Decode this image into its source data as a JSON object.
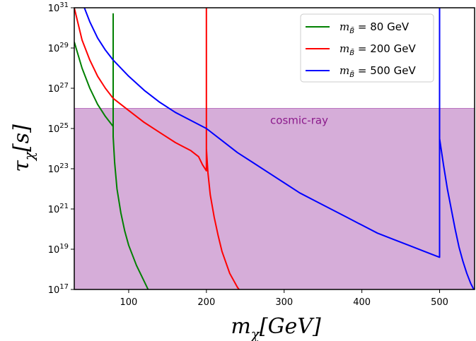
{
  "chart_data": {
    "type": "line",
    "title": "",
    "xlabel": "m_χ[GeV]",
    "ylabel": "τ_χ[s]",
    "xlim": [
      30,
      545
    ],
    "ylim_log10": [
      17,
      31
    ],
    "y_scale": "log",
    "grid": false,
    "legend_placement": "top-right",
    "x_ticks": [
      100,
      200,
      300,
      400,
      500
    ],
    "y_ticks": [
      {
        "value": "1e17",
        "mantissa": "10",
        "exponent": "17"
      },
      {
        "value": "1e19",
        "mantissa": "10",
        "exponent": "19"
      },
      {
        "value": "1e21",
        "mantissa": "10",
        "exponent": "21"
      },
      {
        "value": "1e23",
        "mantissa": "10",
        "exponent": "23"
      },
      {
        "value": "1e25",
        "mantissa": "10",
        "exponent": "25"
      },
      {
        "value": "1e27",
        "mantissa": "10",
        "exponent": "27"
      },
      {
        "value": "1e29",
        "mantissa": "10",
        "exponent": "29"
      },
      {
        "value": "1e31",
        "mantissa": "10",
        "exponent": "31"
      }
    ],
    "bands": [
      {
        "label": "cosmic-ray",
        "y_log10_min": 17,
        "y_log10_max": 26,
        "color": "#ae5cb4",
        "opacity": 0.5,
        "text_color": "#8b1a8b"
      }
    ],
    "series": [
      {
        "name": "m_B̃ = 80 GeV",
        "legend_prefix": "m",
        "legend_sub": "B̃",
        "legend_suffix": " = 80 GeV",
        "color": "#008000",
        "x": [
          30,
          40,
          50,
          60,
          70,
          80,
          80,
          80,
          82,
          85,
          90,
          95,
          100,
          110,
          120,
          125
        ],
        "y_log10": [
          29.3,
          28.0,
          27.0,
          26.2,
          25.6,
          25.1,
          30.7,
          24.6,
          23.3,
          22.0,
          20.8,
          19.9,
          19.2,
          18.2,
          17.4,
          17.0
        ]
      },
      {
        "name": "m_B̃ = 200 GeV",
        "legend_prefix": "m",
        "legend_sub": "B̃",
        "legend_suffix": " = 200 GeV",
        "color": "#ff0000",
        "x": [
          30,
          40,
          50,
          60,
          70,
          80,
          100,
          120,
          140,
          160,
          180,
          190,
          195,
          200,
          200,
          200,
          202,
          205,
          210,
          215,
          220,
          230,
          240,
          242
        ],
        "y_log10": [
          31.0,
          29.4,
          28.4,
          27.6,
          27.0,
          26.5,
          25.9,
          25.3,
          24.8,
          24.3,
          23.9,
          23.6,
          23.2,
          22.9,
          31.0,
          24.0,
          22.8,
          21.7,
          20.6,
          19.7,
          18.9,
          17.8,
          17.1,
          17.0
        ]
      },
      {
        "name": "m_B̃ = 500 GeV",
        "legend_prefix": "m",
        "legend_sub": "B̃",
        "legend_suffix": " = 500 GeV",
        "color": "#0000ff",
        "x": [
          43,
          50,
          60,
          70,
          80,
          100,
          120,
          140,
          160,
          180,
          200,
          220,
          240,
          260,
          280,
          300,
          320,
          340,
          360,
          380,
          400,
          420,
          440,
          460,
          480,
          500,
          500,
          500,
          505,
          510,
          515,
          520,
          525,
          530,
          535,
          540,
          544
        ],
        "y_log10": [
          31.0,
          30.3,
          29.5,
          28.9,
          28.4,
          27.6,
          26.9,
          26.3,
          25.8,
          25.4,
          25.0,
          24.4,
          23.8,
          23.3,
          22.8,
          22.3,
          21.8,
          21.4,
          21.0,
          20.6,
          20.2,
          19.8,
          19.5,
          19.2,
          18.9,
          18.6,
          31.0,
          24.5,
          23.2,
          22.0,
          21.0,
          20.0,
          19.1,
          18.4,
          17.8,
          17.3,
          17.0
        ]
      }
    ]
  }
}
